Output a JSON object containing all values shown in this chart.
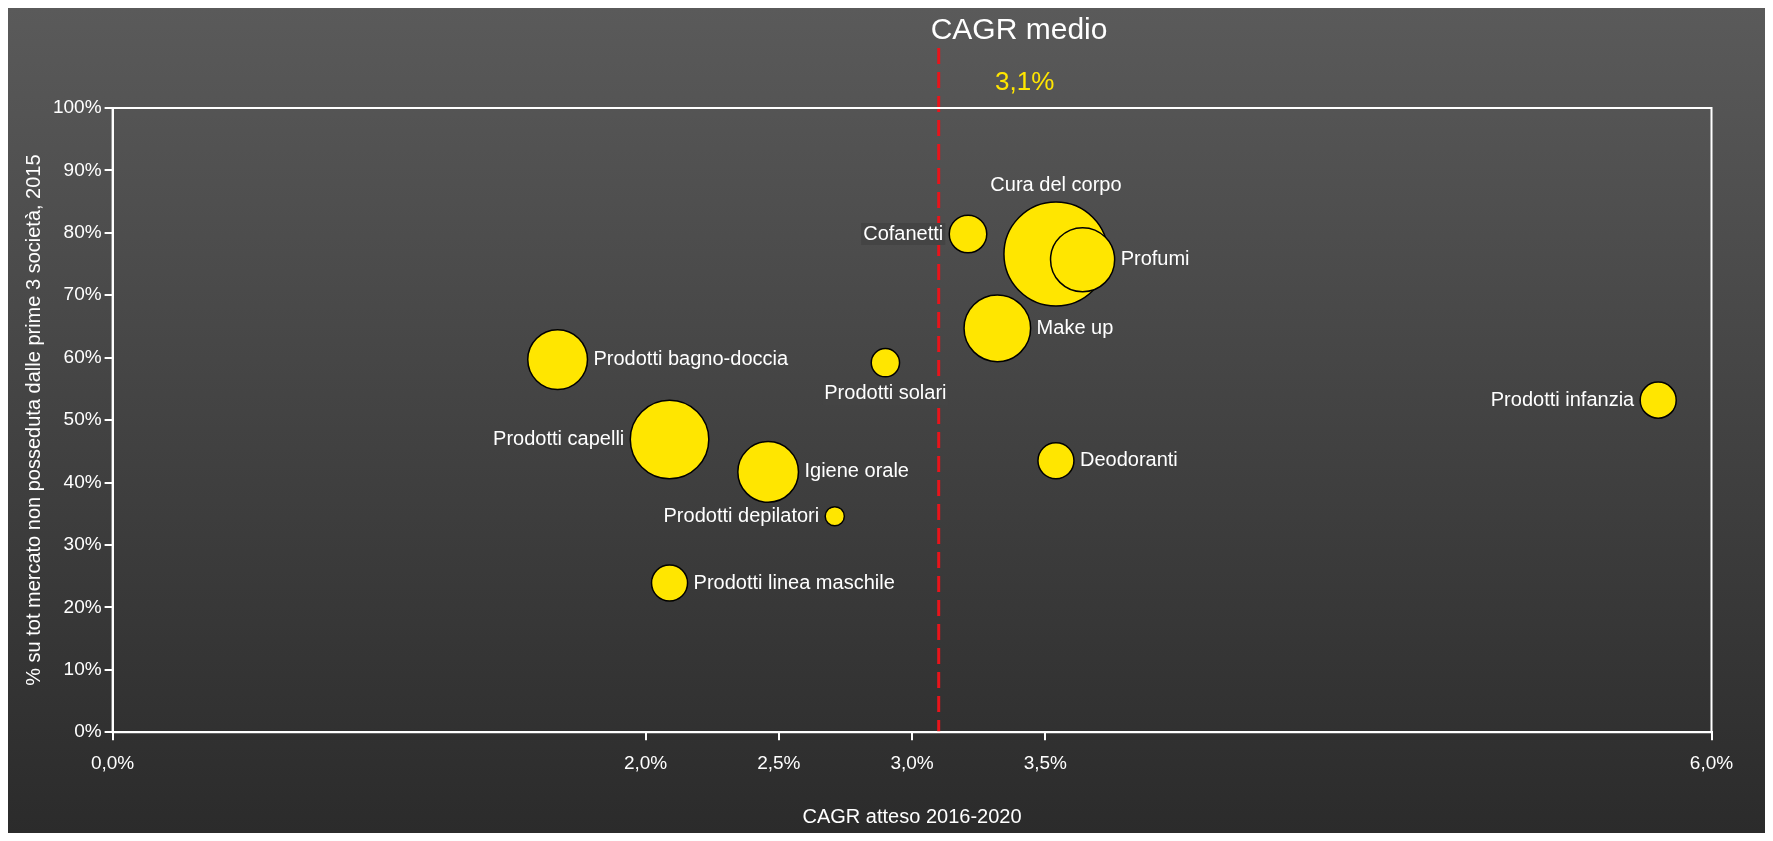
{
  "chart_data": {
    "type": "bubble",
    "xlabel": "CAGR atteso 2016-2020",
    "ylabel": "% su tot mercato non posseduta dalle prime 3 società, 2015",
    "xlim": [
      0,
      6
    ],
    "xticks": [
      {
        "value": 0,
        "label": "0,0%"
      },
      {
        "value": 2,
        "label": "2,0%"
      },
      {
        "value": 2.5,
        "label": "2,5%"
      },
      {
        "value": 3,
        "label": "3,0%"
      },
      {
        "value": 3.5,
        "label": "3,5%"
      },
      {
        "value": 6,
        "label": "6,0%"
      }
    ],
    "ylim": [
      0,
      100
    ],
    "yticks": [
      {
        "value": 0,
        "label": "0%"
      },
      {
        "value": 10,
        "label": "10%"
      },
      {
        "value": 20,
        "label": "20%"
      },
      {
        "value": 30,
        "label": "30%"
      },
      {
        "value": 40,
        "label": "40%"
      },
      {
        "value": 50,
        "label": "50%"
      },
      {
        "value": 60,
        "label": "60%"
      },
      {
        "value": 70,
        "label": "70%"
      },
      {
        "value": 80,
        "label": "80%"
      },
      {
        "value": 90,
        "label": "90%"
      },
      {
        "value": 100,
        "label": "100%"
      }
    ],
    "legend": false,
    "ref_lines": [
      {
        "axis": "x",
        "value": 3.1,
        "label": "CAGR medio",
        "color": "#e8141b",
        "line_style": "dashed"
      }
    ],
    "annotations": [
      "3,1%"
    ],
    "series": [
      {
        "name": "Prodotti bagno-doccia",
        "color": "#ffe600",
        "x": [
          1.67
        ],
        "values": [
          59.7
        ],
        "sizes": [
          0.33
        ]
      },
      {
        "name": "Prodotti capelli",
        "color": "#ffe600",
        "x": [
          2.09
        ],
        "values": [
          46.9
        ],
        "sizes": [
          0.57
        ]
      },
      {
        "name": "Prodotti linea maschile",
        "color": "#ffe600",
        "x": [
          2.09
        ],
        "values": [
          23.9
        ],
        "sizes": [
          0.12
        ]
      },
      {
        "name": "Igiene orale",
        "color": "#ffe600",
        "x": [
          2.46
        ],
        "values": [
          41.7
        ],
        "sizes": [
          0.34
        ]
      },
      {
        "name": "Prodotti depilatori",
        "color": "#ffe600",
        "x": [
          2.71
        ],
        "values": [
          34.6
        ],
        "sizes": [
          0.034
        ]
      },
      {
        "name": "Prodotti solari",
        "color": "#ffe600",
        "x": [
          2.9
        ],
        "values": [
          59.2
        ],
        "sizes": [
          0.074
        ]
      },
      {
        "name": "Cofanetti",
        "color": "#ffe600",
        "x": [
          3.21
        ],
        "values": [
          79.8
        ],
        "sizes": [
          0.13
        ]
      },
      {
        "name": "Make up",
        "color": "#ffe600",
        "x": [
          3.32
        ],
        "values": [
          64.7
        ],
        "sizes": [
          0.41
        ]
      },
      {
        "name": "Cura del corpo",
        "color": "#ffe600",
        "x": [
          3.54
        ],
        "values": [
          76.6
        ],
        "sizes": [
          1
        ]
      },
      {
        "name": "Profumi",
        "color": "#ffe600",
        "x": [
          3.64
        ],
        "values": [
          75.7
        ],
        "sizes": [
          0.38
        ]
      },
      {
        "name": "Deodoranti",
        "color": "#ffe600",
        "x": [
          3.54
        ],
        "values": [
          43.5
        ],
        "sizes": [
          0.12
        ]
      },
      {
        "name": "Prodotti infanzia",
        "color": "#ffe600",
        "x": [
          5.8
        ],
        "values": [
          53.2
        ],
        "sizes": [
          0.12
        ]
      }
    ]
  }
}
